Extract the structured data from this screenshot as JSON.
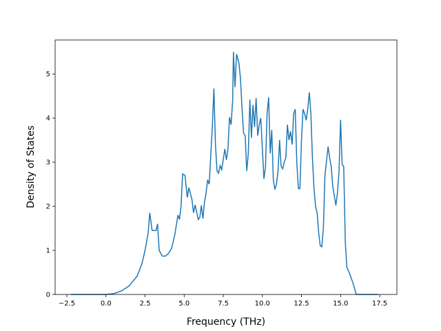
{
  "chart_data": {
    "type": "line",
    "xlabel": "Frequency (THz)",
    "ylabel": "Density of States",
    "x": [
      -2.25,
      0,
      0.5,
      1,
      1.5,
      2,
      2.3,
      2.5,
      2.7,
      2.8,
      2.95,
      3.2,
      3.3,
      3.4,
      3.6,
      3.8,
      4.0,
      4.2,
      4.4,
      4.6,
      4.7,
      4.8,
      4.9,
      5.05,
      5.2,
      5.3,
      5.5,
      5.6,
      5.7,
      5.9,
      6.0,
      6.1,
      6.2,
      6.3,
      6.4,
      6.5,
      6.6,
      6.8,
      6.9,
      7.0,
      7.1,
      7.2,
      7.3,
      7.4,
      7.6,
      7.7,
      7.8,
      7.9,
      8.0,
      8.1,
      8.15,
      8.25,
      8.35,
      8.5,
      8.6,
      8.7,
      8.8,
      8.9,
      9.0,
      9.1,
      9.2,
      9.3,
      9.4,
      9.5,
      9.6,
      9.7,
      9.8,
      9.9,
      10.0,
      10.1,
      10.2,
      10.3,
      10.4,
      10.5,
      10.6,
      10.7,
      10.8,
      10.9,
      11.0,
      11.1,
      11.2,
      11.3,
      11.4,
      11.5,
      11.6,
      11.7,
      11.8,
      11.9,
      12.0,
      12.1,
      12.2,
      12.3,
      12.4,
      12.5,
      12.6,
      12.7,
      12.8,
      12.9,
      13.0,
      13.1,
      13.2,
      13.3,
      13.4,
      13.5,
      13.6,
      13.7,
      13.8,
      13.9,
      14.0,
      14.2,
      14.3,
      14.4,
      14.5,
      14.7,
      14.8,
      14.9,
      15.0,
      15.1,
      15.2,
      15.3,
      15.4,
      15.6,
      15.8,
      16.0,
      17.4
    ],
    "series": [
      {
        "color": "#1f77b4",
        "values": [
          0,
          0,
          0.02,
          0.08,
          0.2,
          0.42,
          0.7,
          1.0,
          1.4,
          1.85,
          1.45,
          1.45,
          1.6,
          1.0,
          0.87,
          0.87,
          0.93,
          1.05,
          1.35,
          1.8,
          1.7,
          2.0,
          2.73,
          2.7,
          2.2,
          2.42,
          2.15,
          1.85,
          2.03,
          1.7,
          1.75,
          2.02,
          1.72,
          2.1,
          2.3,
          2.6,
          2.5,
          3.8,
          4.67,
          3.4,
          2.8,
          2.75,
          2.92,
          2.83,
          3.3,
          3.05,
          3.3,
          4.02,
          3.85,
          4.4,
          5.5,
          4.7,
          5.45,
          5.25,
          4.9,
          4.2,
          3.65,
          3.6,
          2.8,
          3.2,
          4.42,
          3.55,
          4.3,
          3.8,
          4.45,
          3.6,
          3.85,
          4.0,
          3.3,
          2.62,
          2.9,
          4.1,
          4.47,
          3.2,
          3.73,
          2.6,
          2.38,
          2.5,
          2.8,
          3.5,
          2.9,
          2.85,
          3.0,
          3.1,
          3.85,
          3.5,
          3.7,
          3.4,
          4.1,
          4.2,
          3.0,
          2.4,
          2.4,
          3.5,
          4.2,
          4.1,
          3.95,
          4.2,
          4.58,
          4.1,
          3.1,
          2.4,
          2.0,
          1.85,
          1.4,
          1.1,
          1.08,
          1.5,
          2.7,
          3.35,
          3.1,
          2.9,
          2.45,
          2.02,
          2.3,
          2.8,
          3.96,
          2.95,
          2.9,
          1.2,
          0.62,
          0.45,
          0.25,
          0,
          0
        ]
      }
    ],
    "xlim": [
      -3.25,
      18.6
    ],
    "xticks": [
      {
        "value": -2.5,
        "label": "−2.5"
      },
      {
        "value": 0,
        "label": "0.0"
      },
      2.5,
      {
        "value": 5,
        "label": "5.0"
      },
      7.5,
      {
        "value": 10,
        "label": "10.0"
      },
      12.5,
      {
        "value": 15,
        "label": "15.0"
      },
      17.5
    ],
    "ylim": [
      0,
      5.77
    ],
    "yticks": [
      0,
      1,
      2,
      3,
      4,
      5
    ],
    "grid": false
  }
}
